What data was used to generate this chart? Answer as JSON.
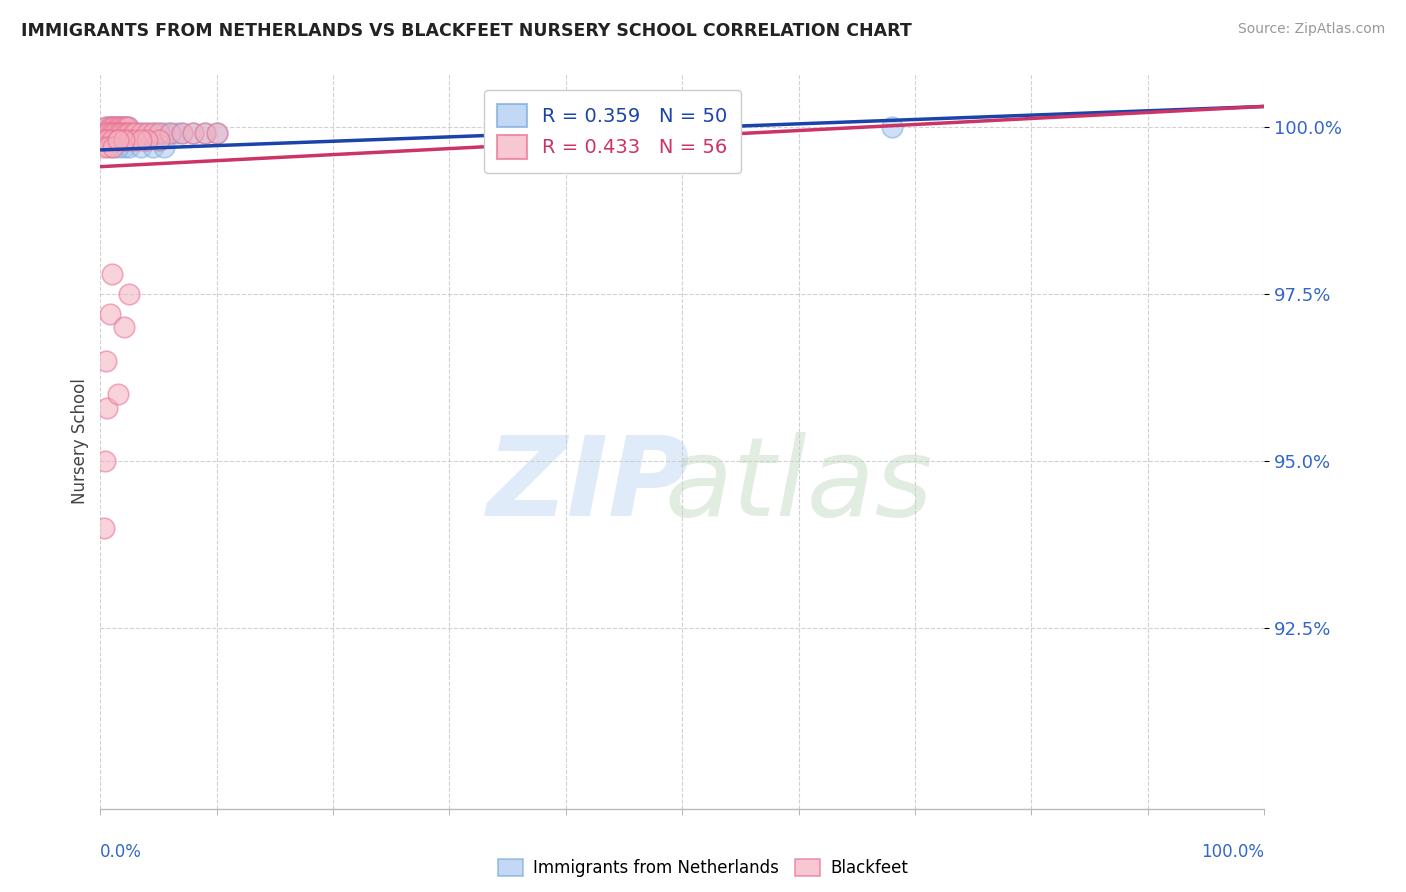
{
  "title": "IMMIGRANTS FROM NETHERLANDS VS BLACKFEET NURSERY SCHOOL CORRELATION CHART",
  "source": "Source: ZipAtlas.com",
  "ylabel": "Nursery School",
  "blue_label": "Immigrants from Netherlands",
  "pink_label": "Blackfeet",
  "blue_R": 0.359,
  "blue_N": 50,
  "pink_R": 0.433,
  "pink_N": 56,
  "blue_color": "#A8C8F0",
  "pink_color": "#F5B0C0",
  "blue_edge_color": "#7AAADA",
  "pink_edge_color": "#E87090",
  "blue_line_color": "#1A44AA",
  "pink_line_color": "#CC3366",
  "xmin": 0.0,
  "xmax": 1.0,
  "ymin": 0.898,
  "ymax": 1.008,
  "yticks": [
    0.925,
    0.95,
    0.975,
    1.0
  ],
  "ytick_labels": [
    "92.5%",
    "95.0%",
    "97.5%",
    "100.0%"
  ],
  "background_color": "#FFFFFF",
  "grid_color": "#CCCCCC",
  "blue_x": [
    0.005,
    0.008,
    0.01,
    0.012,
    0.014,
    0.016,
    0.018,
    0.02,
    0.022,
    0.024,
    0.005,
    0.007,
    0.009,
    0.011,
    0.013,
    0.015,
    0.017,
    0.019,
    0.021,
    0.023,
    0.025,
    0.028,
    0.03,
    0.035,
    0.04,
    0.045,
    0.05,
    0.055,
    0.06,
    0.065,
    0.004,
    0.006,
    0.008,
    0.01,
    0.012,
    0.07,
    0.08,
    0.09,
    0.1,
    0.03,
    0.04,
    0.05,
    0.02,
    0.025,
    0.015,
    0.01,
    0.035,
    0.045,
    0.055,
    0.68
  ],
  "blue_y": [
    1.0,
    1.0,
    1.0,
    1.0,
    1.0,
    1.0,
    1.0,
    1.0,
    1.0,
    1.0,
    0.999,
    0.999,
    0.999,
    0.999,
    0.999,
    0.999,
    0.999,
    0.999,
    0.999,
    0.999,
    0.999,
    0.999,
    0.999,
    0.999,
    0.999,
    0.999,
    0.999,
    0.999,
    0.999,
    0.999,
    0.998,
    0.998,
    0.998,
    0.998,
    0.998,
    0.999,
    0.999,
    0.999,
    0.999,
    0.998,
    0.998,
    0.998,
    0.997,
    0.997,
    0.997,
    0.997,
    0.997,
    0.997,
    0.997,
    1.0
  ],
  "pink_x": [
    0.005,
    0.008,
    0.01,
    0.012,
    0.014,
    0.016,
    0.018,
    0.02,
    0.022,
    0.024,
    0.005,
    0.007,
    0.009,
    0.011,
    0.013,
    0.015,
    0.017,
    0.019,
    0.021,
    0.023,
    0.025,
    0.028,
    0.03,
    0.035,
    0.04,
    0.045,
    0.05,
    0.06,
    0.07,
    0.08,
    0.004,
    0.006,
    0.01,
    0.015,
    0.02,
    0.025,
    0.03,
    0.003,
    0.007,
    0.011,
    0.09,
    0.1,
    0.05,
    0.04,
    0.035,
    0.02,
    0.015,
    0.01,
    0.008,
    0.005,
    0.006,
    0.004,
    0.003,
    0.025,
    0.02,
    0.015
  ],
  "pink_y": [
    1.0,
    1.0,
    1.0,
    1.0,
    1.0,
    1.0,
    1.0,
    1.0,
    1.0,
    1.0,
    0.999,
    0.999,
    0.999,
    0.999,
    0.999,
    0.999,
    0.999,
    0.999,
    0.999,
    0.999,
    0.999,
    0.999,
    0.999,
    0.999,
    0.999,
    0.999,
    0.999,
    0.999,
    0.999,
    0.999,
    0.998,
    0.998,
    0.998,
    0.998,
    0.998,
    0.998,
    0.998,
    0.997,
    0.997,
    0.997,
    0.999,
    0.999,
    0.998,
    0.998,
    0.998,
    0.998,
    0.998,
    0.978,
    0.972,
    0.965,
    0.958,
    0.95,
    0.94,
    0.975,
    0.97,
    0.96
  ],
  "blue_trend_x": [
    0.0,
    1.0
  ],
  "blue_trend_y": [
    0.9965,
    1.003
  ],
  "pink_trend_x": [
    0.0,
    1.0
  ],
  "pink_trend_y": [
    0.994,
    1.003
  ]
}
